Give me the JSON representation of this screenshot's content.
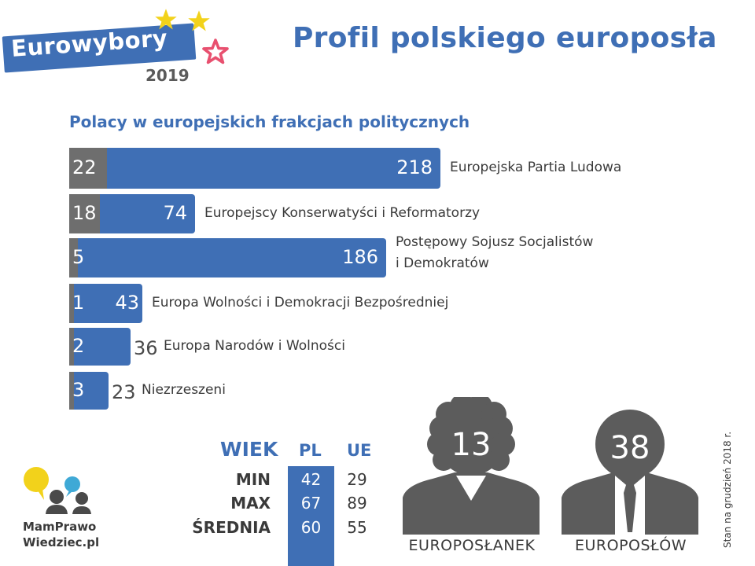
{
  "logo": {
    "name": "Eurowybory",
    "year": "2019"
  },
  "title": "Profil polskiego europosła",
  "chart_title": "Polacy w europejskich frakcjach politycznych",
  "chart_data": {
    "type": "bar",
    "categories": [
      "Europejska Partia Ludowa",
      "Europejscy Konserwatyści i Reformatorzy",
      "Postępowy Sojusz Socjalistów i Demokratów",
      "Europa Wolności i Demokracji Bezpośredniej",
      "Europa Narodów i Wolności",
      "Niezrzeszeni"
    ],
    "category_lines": [
      [
        "Europejska Partia Ludowa"
      ],
      [
        "Europejscy Konserwatyści i Reformatorzy"
      ],
      [
        "Postępowy Sojusz Socjalistów",
        "i Demokratów"
      ],
      [
        "Europa Wolności i Demokracji Bezpośredniej"
      ],
      [
        "Europa Narodów i Wolności"
      ],
      [
        "Niezrzeszeni"
      ]
    ],
    "series": [
      {
        "values": [
          22,
          18,
          5,
          1,
          2,
          3
        ]
      },
      {
        "values": [
          218,
          74,
          186,
          43,
          36,
          23
        ]
      }
    ],
    "orientation": "horizontal",
    "colors": {
      "pl": "#6e6e6e",
      "total": "#3f6fb5"
    }
  },
  "age_table": {
    "title": "WIEK",
    "columns": [
      "PL",
      "UE"
    ],
    "rows": [
      {
        "label": "MIN",
        "pl": "42",
        "ue": "29"
      },
      {
        "label": "MAX",
        "pl": "67",
        "ue": "89"
      },
      {
        "label": "ŚREDNIA",
        "pl": "60",
        "ue": "55"
      }
    ]
  },
  "women": {
    "count": "13",
    "label": "EUROPOSŁANEK"
  },
  "men": {
    "count": "38",
    "label": "EUROPOSŁÓW"
  },
  "note": "Stan na grudzień 2018 r.",
  "brand": {
    "line1": "MamPrawo",
    "line2": "Wiedziec.pl"
  },
  "colors": {
    "accent": "#3f6fb5",
    "gray": "#6e6e6e",
    "dark": "#4a4a4a",
    "star_yellow": "#f2d21b",
    "star_pink": "#e8506f"
  }
}
